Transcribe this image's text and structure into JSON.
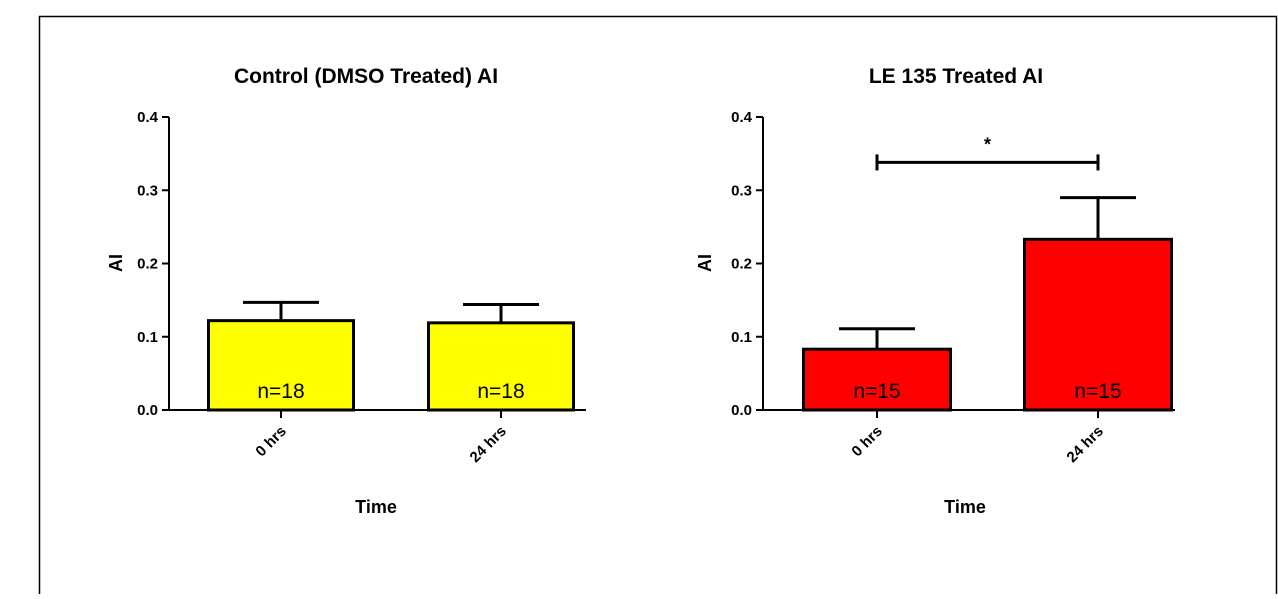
{
  "chart_data": [
    {
      "type": "bar",
      "title": "Control (DMSO Treated) AI",
      "xlabel": "Time",
      "ylabel": "AI",
      "ylim": [
        0,
        0.4
      ],
      "yticks": [
        "0.0",
        "0.1",
        "0.2",
        "0.3",
        "0.4"
      ],
      "categories": [
        "0 hrs",
        "24 hrs"
      ],
      "values": [
        0.122,
        0.119
      ],
      "errors": [
        0.025,
        0.025
      ],
      "bar_labels": [
        "n=18",
        "n=18"
      ],
      "bar_color": "#ffff00",
      "significance": null
    },
    {
      "type": "bar",
      "title": "LE 135  Treated AI",
      "xlabel": "Time",
      "ylabel": "AI",
      "ylim": [
        0,
        0.4
      ],
      "yticks": [
        "0.0",
        "0.1",
        "0.2",
        "0.3",
        "0.4"
      ],
      "categories": [
        "0 hrs",
        "24 hrs"
      ],
      "values": [
        0.083,
        0.233
      ],
      "errors": [
        0.028,
        0.057
      ],
      "bar_labels": [
        "n=15",
        "n=15"
      ],
      "bar_color": "#ff0000",
      "significance": {
        "label": "*",
        "between": [
          0,
          1
        ],
        "y": 0.338
      }
    }
  ]
}
